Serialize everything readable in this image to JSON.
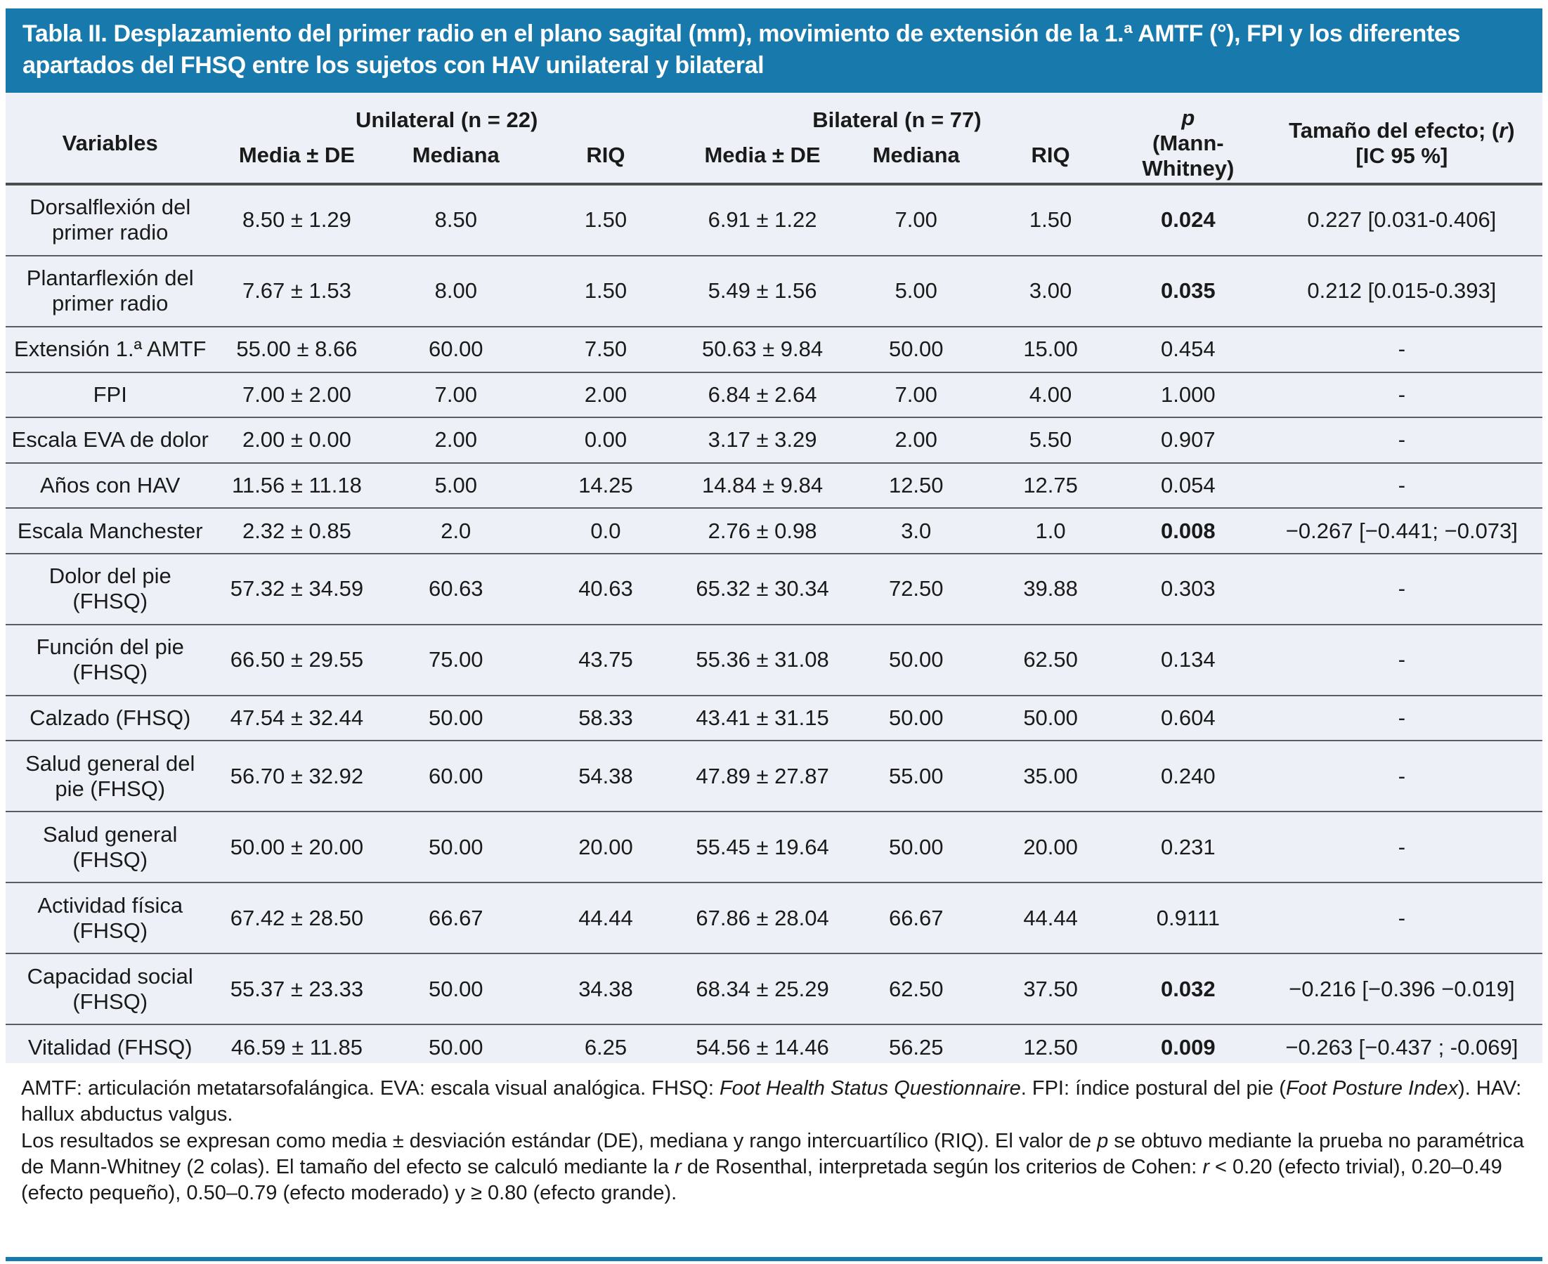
{
  "colors": {
    "title_bar_blue": "#1879AD",
    "table_background": "#EDF1F7",
    "text": "#1a1a1a",
    "row_border": "#5a5e63"
  },
  "title": "Tabla II. Desplazamiento del primer radio en el plano sagital (mm), movimiento de extensión de la 1.ª AMTF (°), FPI y los diferentes apartados del FHSQ entre los sujetos con HAV unilateral y bilateral",
  "header": {
    "variables": "Variables",
    "group_unilateral": "Unilateral (n = 22)",
    "group_bilateral": "Bilateral (n = 77)",
    "sub_media": "Media ± DE",
    "sub_mediana": "Mediana",
    "sub_riq": "RIQ",
    "p_label": "p",
    "p_sub": "(Mann-Whitney)",
    "effect_prefix": "Tamaño del efecto; (",
    "effect_r": "r",
    "effect_suffix": ")",
    "effect_line2": "[IC 95 %]"
  },
  "rows": [
    {
      "variable": "Dorsalflexión del primer radio",
      "u_media": "8.50 ± 1.29",
      "u_mediana": "8.50",
      "u_riq": "1.50",
      "b_media": "6.91 ± 1.22",
      "b_mediana": "7.00",
      "b_riq": "1.50",
      "p": "0.024",
      "p_bold": true,
      "effect": "0.227 [0.031-0.406]"
    },
    {
      "variable": "Plantarflexión del primer radio",
      "u_media": "7.67 ± 1.53",
      "u_mediana": "8.00",
      "u_riq": "1.50",
      "b_media": "5.49 ± 1.56",
      "b_mediana": "5.00",
      "b_riq": "3.00",
      "p": "0.035",
      "p_bold": true,
      "effect": "0.212 [0.015-0.393]"
    },
    {
      "variable": "Extensión 1.ª AMTF",
      "u_media": "55.00 ± 8.66",
      "u_mediana": "60.00",
      "u_riq": "7.50",
      "b_media": "50.63 ± 9.84",
      "b_mediana": "50.00",
      "b_riq": "15.00",
      "p": "0.454",
      "p_bold": false,
      "effect": "-"
    },
    {
      "variable": "FPI",
      "u_media": "7.00 ± 2.00",
      "u_mediana": "7.00",
      "u_riq": "2.00",
      "b_media": "6.84 ± 2.64",
      "b_mediana": "7.00",
      "b_riq": "4.00",
      "p": "1.000",
      "p_bold": false,
      "effect": "-"
    },
    {
      "variable": "Escala EVA de dolor",
      "u_media": "2.00 ± 0.00",
      "u_mediana": "2.00",
      "u_riq": "0.00",
      "b_media": "3.17 ± 3.29",
      "b_mediana": "2.00",
      "b_riq": "5.50",
      "p": "0.907",
      "p_bold": false,
      "effect": "-"
    },
    {
      "variable": "Años con HAV",
      "u_media": "11.56 ± 11.18",
      "u_mediana": "5.00",
      "u_riq": "14.25",
      "b_media": "14.84 ± 9.84",
      "b_mediana": "12.50",
      "b_riq": "12.75",
      "p": "0.054",
      "p_bold": false,
      "effect": "-"
    },
    {
      "variable": "Escala Manchester",
      "u_media": "2.32 ± 0.85",
      "u_mediana": "2.0",
      "u_riq": "0.0",
      "b_media": "2.76 ± 0.98",
      "b_mediana": "3.0",
      "b_riq": "1.0",
      "p": "0.008",
      "p_bold": true,
      "effect": "−0.267 [−0.441; −0.073]"
    },
    {
      "variable": "Dolor del pie (FHSQ)",
      "u_media": "57.32 ± 34.59",
      "u_mediana": "60.63",
      "u_riq": "40.63",
      "b_media": "65.32 ± 30.34",
      "b_mediana": "72.50",
      "b_riq": "39.88",
      "p": "0.303",
      "p_bold": false,
      "effect": "-"
    },
    {
      "variable": "Función del pie (FHSQ)",
      "u_media": "66.50 ± 29.55",
      "u_mediana": "75.00",
      "u_riq": "43.75",
      "b_media": "55.36 ± 31.08",
      "b_mediana": "50.00",
      "b_riq": "62.50",
      "p": "0.134",
      "p_bold": false,
      "effect": "-"
    },
    {
      "variable": "Calzado (FHSQ)",
      "u_media": "47.54 ± 32.44",
      "u_mediana": "50.00",
      "u_riq": "58.33",
      "b_media": "43.41 ± 31.15",
      "b_mediana": "50.00",
      "b_riq": "50.00",
      "p": "0.604",
      "p_bold": false,
      "effect": "-"
    },
    {
      "variable": "Salud general del pie (FHSQ)",
      "u_media": "56.70 ± 32.92",
      "u_mediana": "60.00",
      "u_riq": "54.38",
      "b_media": "47.89 ± 27.87",
      "b_mediana": "55.00",
      "b_riq": "35.00",
      "p": "0.240",
      "p_bold": false,
      "effect": "-"
    },
    {
      "variable": "Salud general (FHSQ)",
      "u_media": "50.00 ± 20.00",
      "u_mediana": "50.00",
      "u_riq": "20.00",
      "b_media": "55.45 ± 19.64",
      "b_mediana": "50.00",
      "b_riq": "20.00",
      "p": "0.231",
      "p_bold": false,
      "effect": "-"
    },
    {
      "variable": "Actividad física (FHSQ)",
      "u_media": "67.42 ± 28.50",
      "u_mediana": "66.67",
      "u_riq": "44.44",
      "b_media": "67.86 ± 28.04",
      "b_mediana": "66.67",
      "b_riq": "44.44",
      "p": "0.9111",
      "p_bold": false,
      "effect": "-"
    },
    {
      "variable": "Capacidad social (FHSQ)",
      "u_media": "55.37 ± 23.33",
      "u_mediana": "50.00",
      "u_riq": "34.38",
      "b_media": "68.34 ± 25.29",
      "b_mediana": "62.50",
      "b_riq": "37.50",
      "p": "0.032",
      "p_bold": true,
      "effect": "−0.216 [−0.396 −0.019]"
    },
    {
      "variable": "Vitalidad (FHSQ)",
      "u_media": "46.59 ± 11.85",
      "u_mediana": "50.00",
      "u_riq": "6.25",
      "b_media": "54.56 ± 14.46",
      "b_mediana": "56.25",
      "b_riq": "12.50",
      "p": "0.009",
      "p_bold": true,
      "effect": "−0.263 [−0.437 ; -0.069]"
    }
  ],
  "footnotes": {
    "fn1": [
      {
        "t": "AMTF: articulación metatarsofalángica. EVA: escala visual analógica. FHSQ: ",
        "i": false
      },
      {
        "t": "Foot Health Status Questionnaire",
        "i": true
      },
      {
        "t": ". FPI: índice postural del pie (",
        "i": false
      },
      {
        "t": "Foot Posture Index",
        "i": true
      },
      {
        "t": "). HAV: hallux abductus valgus.",
        "i": false
      }
    ],
    "fn2": [
      {
        "t": "Los resultados se expresan como media ± desviación estándar (DE), mediana y rango intercuartílico (RIQ). El valor de ",
        "i": false
      },
      {
        "t": "p",
        "i": true
      },
      {
        "t": " se obtuvo mediante la prueba no paramétrica de Mann-Whitney (2 colas). El tamaño del efecto se calculó mediante la ",
        "i": false
      },
      {
        "t": "r",
        "i": true
      },
      {
        "t": " de Rosenthal, interpretada según los criterios de Cohen: ",
        "i": false
      },
      {
        "t": "r",
        "i": true
      },
      {
        "t": " < 0.20 (efecto trivial), 0.20–0.49 (efecto pequeño), 0.50–0.79 (efecto moderado) y ≥ 0.80 (efecto grande).",
        "i": false
      }
    ]
  }
}
